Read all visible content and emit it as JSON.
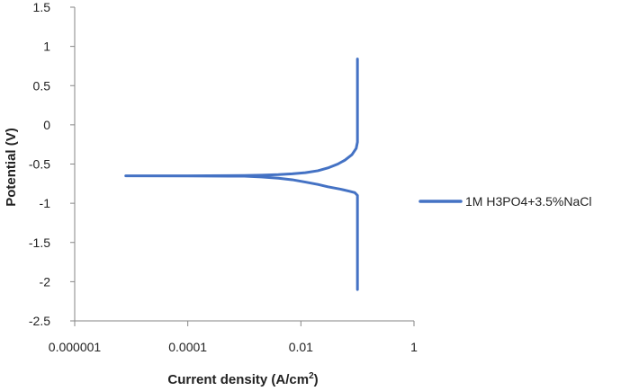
{
  "chart_data": {
    "type": "line",
    "title": "",
    "x_scale": "log",
    "xlabel": "Current density (A/cm",
    "xlabel_superscript": "2",
    "xlabel_suffix": ")",
    "ylabel": "Potential (V)",
    "xlim": [
      1e-06,
      1
    ],
    "ylim": [
      -2.5,
      1.5
    ],
    "x_ticks": [
      1e-06,
      0.0001,
      0.01,
      1
    ],
    "x_tick_labels": [
      "0.000001",
      "0.0001",
      "0.01",
      "1"
    ],
    "y_ticks": [
      1.5,
      1,
      0.5,
      0,
      -0.5,
      -1,
      -1.5,
      -2,
      -2.5
    ],
    "y_tick_labels": [
      "1.5",
      "1",
      "0.5",
      "0",
      "-0.5",
      "-1",
      "-1.5",
      "-2",
      "-2.5"
    ],
    "grid": false,
    "legend_position": "right",
    "series": [
      {
        "name": "1M H3PO4+3.5%NaCl",
        "color": "#4472C4",
        "points": [
          [
            0.1,
            0.84
          ],
          [
            0.1,
            0.6
          ],
          [
            0.1,
            0.2
          ],
          [
            0.1,
            -0.1
          ],
          [
            0.1,
            -0.22
          ],
          [
            0.095,
            -0.3
          ],
          [
            0.08,
            -0.38
          ],
          [
            0.06,
            -0.45
          ],
          [
            0.045,
            -0.5
          ],
          [
            0.03,
            -0.55
          ],
          [
            0.02,
            -0.585
          ],
          [
            0.012,
            -0.61
          ],
          [
            0.007,
            -0.625
          ],
          [
            0.004,
            -0.635
          ],
          [
            0.002,
            -0.642
          ],
          [
            0.001,
            -0.646
          ],
          [
            0.0001,
            -0.65
          ],
          [
            1e-05,
            -0.65
          ],
          [
            8e-06,
            -0.65
          ],
          [
            0.0001,
            -0.652
          ],
          [
            0.001,
            -0.655
          ],
          [
            0.002,
            -0.665
          ],
          [
            0.004,
            -0.68
          ],
          [
            0.007,
            -0.7
          ],
          [
            0.012,
            -0.73
          ],
          [
            0.02,
            -0.76
          ],
          [
            0.03,
            -0.79
          ],
          [
            0.05,
            -0.82
          ],
          [
            0.07,
            -0.845
          ],
          [
            0.09,
            -0.865
          ],
          [
            0.1,
            -0.9
          ],
          [
            0.1,
            -1.1
          ],
          [
            0.1,
            -1.5
          ],
          [
            0.1,
            -1.8
          ],
          [
            0.1,
            -2.1
          ]
        ]
      }
    ]
  }
}
